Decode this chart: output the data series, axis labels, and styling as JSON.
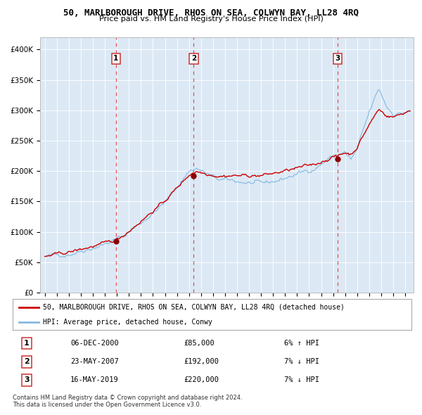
{
  "title_line1": "50, MARLBOROUGH DRIVE, RHOS ON SEA, COLWYN BAY, LL28 4RQ",
  "title_line2": "Price paid vs. HM Land Registry's House Price Index (HPI)",
  "background_color": "#dce9f5",
  "legend_label_red": "50, MARLBOROUGH DRIVE, RHOS ON SEA, COLWYN BAY, LL28 4RQ (detached house)",
  "legend_label_blue": "HPI: Average price, detached house, Conwy",
  "sale_dates": [
    2000.92,
    2007.39,
    2019.37
  ],
  "sale_prices": [
    85000,
    192000,
    220000
  ],
  "sale_labels": [
    "1",
    "2",
    "3"
  ],
  "table_data": [
    [
      "1",
      "06-DEC-2000",
      "£85,000",
      "6% ↑ HPI"
    ],
    [
      "2",
      "23-MAY-2007",
      "£192,000",
      "7% ↓ HPI"
    ],
    [
      "3",
      "16-MAY-2019",
      "£220,000",
      "7% ↓ HPI"
    ]
  ],
  "footnote": "Contains HM Land Registry data © Crown copyright and database right 2024.\nThis data is licensed under the Open Government Licence v3.0.",
  "red_color": "#cc0000",
  "blue_color": "#85b8e0",
  "dark_red": "#8b0000",
  "ylim": [
    0,
    420000
  ],
  "yticks": [
    0,
    50000,
    100000,
    150000,
    200000,
    250000,
    300000,
    350000,
    400000
  ],
  "ytick_labels": [
    "£0",
    "£50K",
    "£100K",
    "£150K",
    "£200K",
    "£250K",
    "£300K",
    "£350K",
    "£400K"
  ],
  "xstart": 1995,
  "xend": 2025
}
